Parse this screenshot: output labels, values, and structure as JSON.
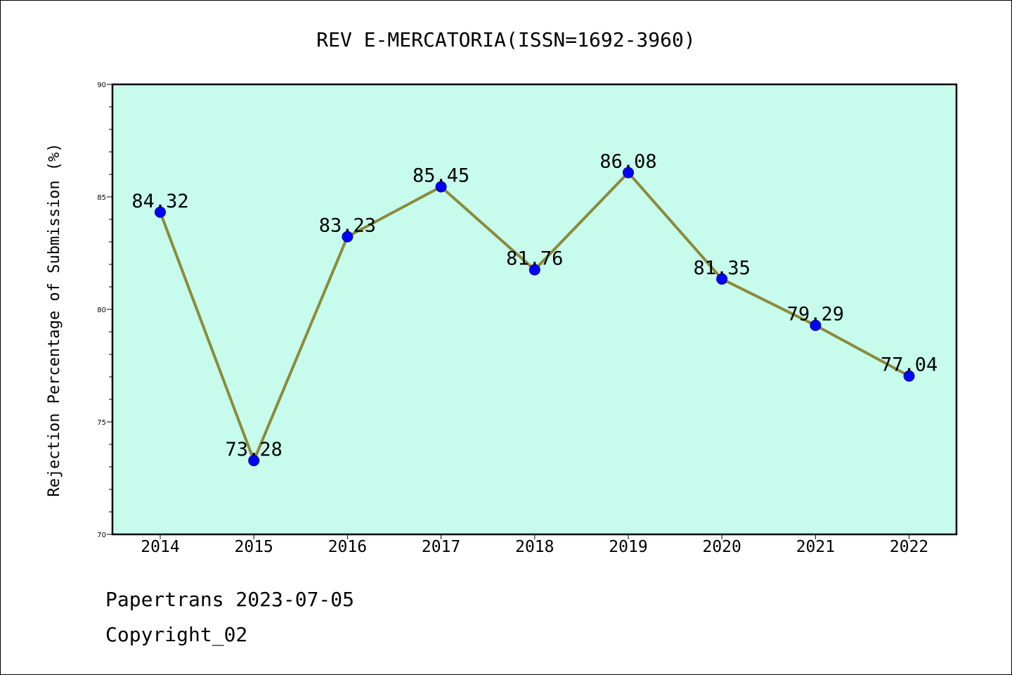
{
  "chart_data": {
    "type": "line",
    "title": "REV E-MERCATORIA(ISSN=1692-3960)",
    "xlabel": "",
    "ylabel": "Rejection Percentage of Submission (%)",
    "categories": [
      "2014",
      "2015",
      "2016",
      "2017",
      "2018",
      "2019",
      "2020",
      "2021",
      "2022"
    ],
    "values": [
      84.32,
      73.28,
      83.23,
      85.45,
      81.76,
      86.08,
      81.35,
      79.29,
      77.04
    ],
    "data_labels": [
      "84.32",
      "73.28",
      "83.23",
      "85.45",
      "81.76",
      "86.08",
      "81.35",
      "79.29",
      "77.04"
    ],
    "ylim": [
      70,
      90
    ],
    "yticks": [
      "70",
      "75",
      "80",
      "85",
      "90"
    ],
    "grid": false,
    "legend": "none",
    "colors": {
      "plot_background": "#c7fcec",
      "line": "#8b8b3a",
      "marker": "#0000ff"
    }
  },
  "footer": {
    "line1": "Papertrans 2023-07-05",
    "line2": "Copyright_02"
  }
}
